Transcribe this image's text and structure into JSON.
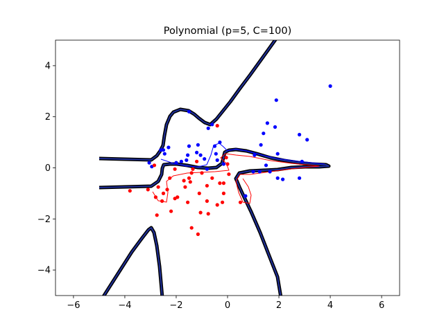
{
  "chart_data": {
    "type": "scatter",
    "title": "Polynomial (p=5, C=100)",
    "xlabel": "",
    "ylabel": "",
    "xlim": [
      -6.7,
      6.7
    ],
    "ylim": [
      -5.0,
      5.0
    ],
    "xticks": [
      -6,
      -4,
      -2,
      0,
      2,
      4,
      6
    ],
    "xtick_labels": [
      "−6",
      "−4",
      "−2",
      "0",
      "2",
      "4",
      "6"
    ],
    "yticks": [
      -4,
      -2,
      0,
      2,
      4
    ],
    "ytick_labels": [
      "−4",
      "−2",
      "0",
      "2",
      "4"
    ],
    "grid": false,
    "legend": "none",
    "colors": {
      "class_positive": "#0000ff",
      "class_negative": "#ff0000",
      "decision_boundary_outline": "#000000",
      "decision_boundary_core": "#1f2f9a",
      "margin_positive": "#0000ff",
      "margin_negative": "#ff0000"
    },
    "series": [
      {
        "color": "#0000ff",
        "points": [
          [
            4.0,
            3.2
          ],
          [
            1.9,
            2.65
          ],
          [
            1.55,
            1.75
          ],
          [
            1.85,
            1.6
          ],
          [
            1.4,
            1.35
          ],
          [
            1.3,
            0.9
          ],
          [
            2.8,
            1.3
          ],
          [
            3.1,
            1.1
          ],
          [
            1.05,
            0.5
          ],
          [
            1.95,
            0.55
          ],
          [
            2.9,
            0.25
          ],
          [
            1.5,
            0.1
          ],
          [
            1.0,
            -0.15
          ],
          [
            1.25,
            -0.15
          ],
          [
            1.65,
            -0.15
          ],
          [
            1.95,
            -0.4
          ],
          [
            2.15,
            -0.45
          ],
          [
            2.8,
            -0.4
          ],
          [
            0.7,
            -1.1
          ],
          [
            -0.6,
            1.7
          ],
          [
            -0.75,
            1.55
          ],
          [
            -1.5,
            2.2
          ],
          [
            -0.3,
            1.0
          ],
          [
            -0.5,
            0.85
          ],
          [
            -0.45,
            0.55
          ],
          [
            -0.15,
            0.15
          ],
          [
            -0.9,
            0.35
          ],
          [
            -1.05,
            0.5
          ],
          [
            -1.15,
            0.9
          ],
          [
            -1.2,
            0.6
          ],
          [
            -1.5,
            0.85
          ],
          [
            -1.55,
            0.5
          ],
          [
            -1.6,
            0.3
          ],
          [
            -1.8,
            0.25
          ],
          [
            -2.0,
            0.2
          ],
          [
            -2.3,
            0.8
          ],
          [
            -2.45,
            0.55
          ],
          [
            -2.5,
            0.7
          ],
          [
            -2.6,
            0.7
          ],
          [
            -2.95,
            0.05
          ],
          [
            -3.05,
            0.2
          ],
          [
            -0.4,
            0.3
          ],
          [
            -0.8,
            -0.05
          ]
        ]
      },
      {
        "color": "#ff0000",
        "points": [
          [
            -0.4,
            1.65
          ],
          [
            -0.05,
            0.4
          ],
          [
            0.0,
            0.15
          ],
          [
            0.05,
            -0.25
          ],
          [
            -0.15,
            -0.6
          ],
          [
            -0.3,
            -0.6
          ],
          [
            -0.15,
            -1.0
          ],
          [
            -0.6,
            -0.4
          ],
          [
            -0.8,
            -0.7
          ],
          [
            -1.0,
            -0.2
          ],
          [
            -1.2,
            0.25
          ],
          [
            -1.35,
            -0.05
          ],
          [
            -1.4,
            -0.2
          ],
          [
            -1.5,
            -0.4
          ],
          [
            -1.45,
            -0.55
          ],
          [
            -1.7,
            -0.5
          ],
          [
            -1.65,
            -0.75
          ],
          [
            -1.55,
            -1.35
          ],
          [
            -1.1,
            -1.0
          ],
          [
            -1.05,
            -1.75
          ],
          [
            -0.8,
            -1.3
          ],
          [
            -0.75,
            -1.8
          ],
          [
            -0.4,
            -1.45
          ],
          [
            -0.2,
            -1.35
          ],
          [
            0.5,
            -1.35
          ],
          [
            -1.4,
            -2.35
          ],
          [
            -1.15,
            -2.6
          ],
          [
            -1.95,
            -1.15
          ],
          [
            -2.05,
            -1.2
          ],
          [
            -2.2,
            -1.7
          ],
          [
            -2.35,
            -0.85
          ],
          [
            -2.25,
            -0.4
          ],
          [
            -2.5,
            -1.0
          ],
          [
            -2.55,
            -1.3
          ],
          [
            -2.7,
            -0.75
          ],
          [
            -2.8,
            -1.15
          ],
          [
            -2.75,
            -1.85
          ],
          [
            -3.1,
            -0.85
          ],
          [
            -3.8,
            -0.9
          ],
          [
            -2.85,
            0.1
          ],
          [
            -2.05,
            -0.05
          ]
        ]
      }
    ]
  }
}
